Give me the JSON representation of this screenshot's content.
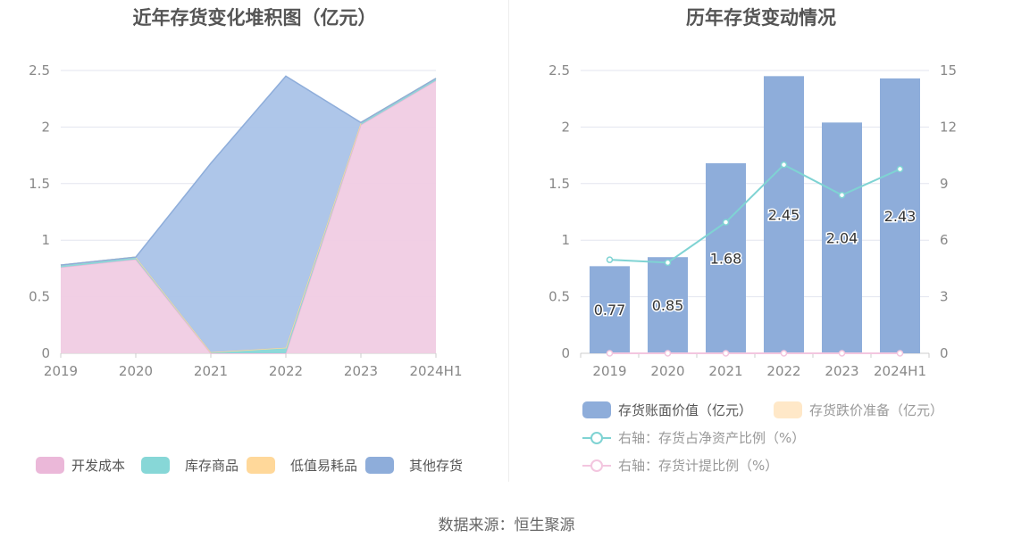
{
  "source": "数据来源：恒生聚源",
  "chart_data": [
    {
      "type": "area",
      "title": "近年存货变化堆积图（亿元）",
      "categories": [
        "2019",
        "2020",
        "2021",
        "2022",
        "2023",
        "2024H1"
      ],
      "y_ticks": [
        "0",
        "0.5",
        "1",
        "1.5",
        "2",
        "2.5"
      ],
      "ylim": [
        0,
        2.5
      ],
      "legend_position": "bottom",
      "series": [
        {
          "name": "开发成本",
          "values": [
            0.76,
            0.83,
            0.0,
            0.0,
            2.02,
            2.41
          ],
          "color": "#f0cce3"
        },
        {
          "name": "库存商品",
          "values": [
            0.02,
            0.02,
            0.01,
            0.05,
            0.02,
            0.02
          ],
          "color": "#87d7d7"
        },
        {
          "name": "低值易耗品",
          "values": [
            0.0,
            0.0,
            0.0,
            0.0,
            0.0,
            0.0
          ],
          "color": "#ffd89a"
        },
        {
          "name": "其他存货",
          "values": [
            0.0,
            0.0,
            1.67,
            2.4,
            0.0,
            0.0
          ],
          "color": "#aac3e8"
        }
      ],
      "legend_colors": [
        "#ebb8d9",
        "#87d7d7",
        "#ffd89a",
        "#8eadda"
      ]
    },
    {
      "type": "bar",
      "title": "历年存货变动情况",
      "categories": [
        "2019",
        "2020",
        "2021",
        "2022",
        "2023",
        "2024H1"
      ],
      "y_ticks": [
        "0",
        "0.5",
        "1",
        "1.5",
        "2",
        "2.5"
      ],
      "ylim": [
        0,
        2.5
      ],
      "y2_ticks": [
        "0",
        "3",
        "6",
        "9",
        "12",
        "15"
      ],
      "y2lim": [
        0,
        15
      ],
      "legend_position": "bottom",
      "series": [
        {
          "name": "存货账面价值（亿元）",
          "type": "bar",
          "axis": "left",
          "values": [
            0.77,
            0.85,
            1.68,
            2.45,
            2.04,
            2.43
          ],
          "labels": [
            "0.77",
            "0.85",
            "1.68",
            "2.45",
            "2.04",
            "2.43"
          ],
          "color": "#8eadda"
        },
        {
          "name": "存货跌价准备（亿元）",
          "type": "bar",
          "axis": "left",
          "values": [
            0,
            0,
            0,
            0,
            0,
            0
          ],
          "color": "#ffe8c8"
        },
        {
          "name": "右轴：存货占净资产比例（%）",
          "type": "line",
          "axis": "right",
          "values": [
            4.96,
            4.81,
            6.95,
            10.0,
            8.39,
            9.77
          ],
          "color": "#7fd3d3"
        },
        {
          "name": "右轴：存货计提比例（%）",
          "type": "line",
          "axis": "right",
          "values": [
            0,
            0,
            0,
            0,
            0,
            0
          ],
          "color": "#f3c6df"
        }
      ]
    }
  ]
}
